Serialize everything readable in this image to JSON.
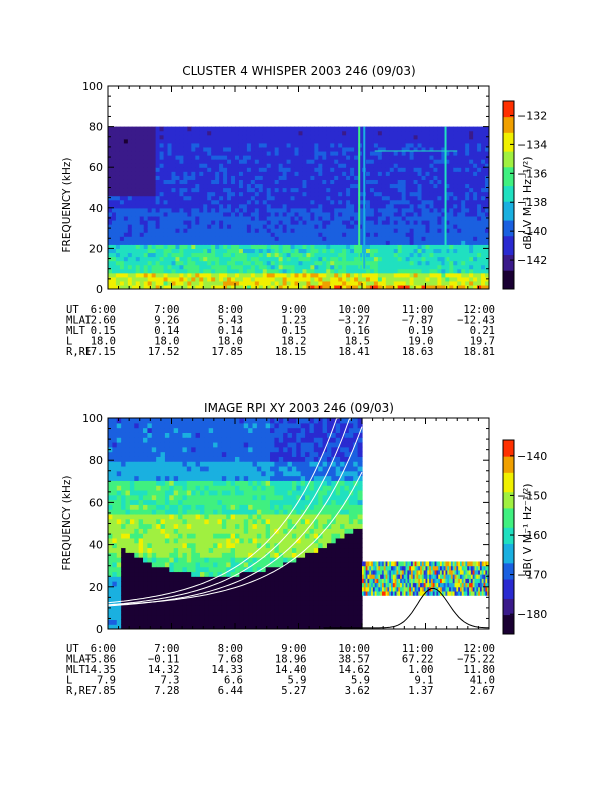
{
  "chart_data": [
    {
      "type": "heatmap",
      "title": "CLUSTER 4 WHISPER 2003 246 (09/03)",
      "ylabel": "FREQUENCY (kHz)",
      "ylim": [
        0,
        100
      ],
      "y_ticks": [
        "0",
        "20",
        "40",
        "60",
        "80",
        "100"
      ],
      "x_ticks": [
        "6:00",
        "7:00",
        "8:00",
        "9:00",
        "10:00",
        "11:00",
        "12:00"
      ],
      "data_max_freq_khz": 80,
      "colorbar": {
        "label": "dB( V M⁻¹ Hz⁻¹/²)",
        "range": [
          -144,
          -131
        ],
        "ticks": [
          "-132",
          "-134",
          "-136",
          "-138",
          "-140",
          "-142"
        ]
      },
      "ephemeris": {
        "rows": [
          {
            "label": "UT",
            "values": [
              "6:00",
              "7:00",
              "8:00",
              "9:00",
              "10:00",
              "11:00",
              "12:00"
            ]
          },
          {
            "label": "MLAT",
            "values": [
              "12.60",
              "9.26",
              "5.43",
              "1.23",
              "-3.27",
              "-7.87",
              "-12.43"
            ]
          },
          {
            "label": "MLT",
            "values": [
              "0.15",
              "0.14",
              "0.14",
              "0.15",
              "0.16",
              "0.19",
              "0.21"
            ]
          },
          {
            "label": "L",
            "values": [
              "18.0",
              "18.0",
              "18.0",
              "18.2",
              "18.5",
              "19.0",
              "19.7"
            ]
          },
          {
            "label": "R,RE",
            "values": [
              "17.15",
              "17.52",
              "17.85",
              "18.15",
              "18.41",
              "18.63",
              "18.81"
            ]
          }
        ]
      },
      "color_scale": [
        "#1a0033",
        "#3a1a8a",
        "#2a2ad0",
        "#1a60e0",
        "#1ab0e0",
        "#20e0c0",
        "#40f080",
        "#a0f040",
        "#f0f000",
        "#f0a000",
        "#ff3000"
      ]
    },
    {
      "type": "heatmap",
      "title": "IMAGE RPI XY 2003 246 (09/03)",
      "ylabel": "FREQUENCY (kHz)",
      "ylim": [
        0,
        100
      ],
      "y_ticks": [
        "0",
        "20",
        "40",
        "60",
        "80",
        "100"
      ],
      "x_ticks": [
        "6:00",
        "7:00",
        "8:00",
        "9:00",
        "10:00",
        "11:00",
        "12:00"
      ],
      "colorbar": {
        "label": "dB( V M⁻¹ Hz⁻¹/²)",
        "range": [
          -185,
          -136
        ],
        "ticks": [
          "-140",
          "-150",
          "-160",
          "-170",
          "-180"
        ]
      },
      "ephemeris": {
        "rows": [
          {
            "label": "UT",
            "values": [
              "6:00",
              "7:00",
              "8:00",
              "9:00",
              "10:00",
              "11:00",
              "12:00"
            ]
          },
          {
            "label": "MLAT",
            "values": [
              "-5.86",
              "-0.11",
              "7.68",
              "18.96",
              "38.57",
              "67.22",
              "-75.22"
            ]
          },
          {
            "label": "MLT",
            "values": [
              "14.35",
              "14.32",
              "14.33",
              "14.40",
              "14.62",
              "1.00",
              "11.80"
            ]
          },
          {
            "label": "L",
            "values": [
              "7.9",
              "7.3",
              "6.6",
              "5.9",
              "5.9",
              "9.1",
              "41.0"
            ]
          },
          {
            "label": "R,RE",
            "values": [
              "7.85",
              "7.28",
              "6.44",
              "5.27",
              "3.62",
              "1.37",
              "2.67"
            ]
          }
        ]
      },
      "color_scale": [
        "#1a0033",
        "#3a1a8a",
        "#2a2ad0",
        "#1a60e0",
        "#1ab0e0",
        "#20e0c0",
        "#40f080",
        "#a0f040",
        "#f0f000",
        "#f0a000",
        "#ff3000"
      ]
    }
  ]
}
